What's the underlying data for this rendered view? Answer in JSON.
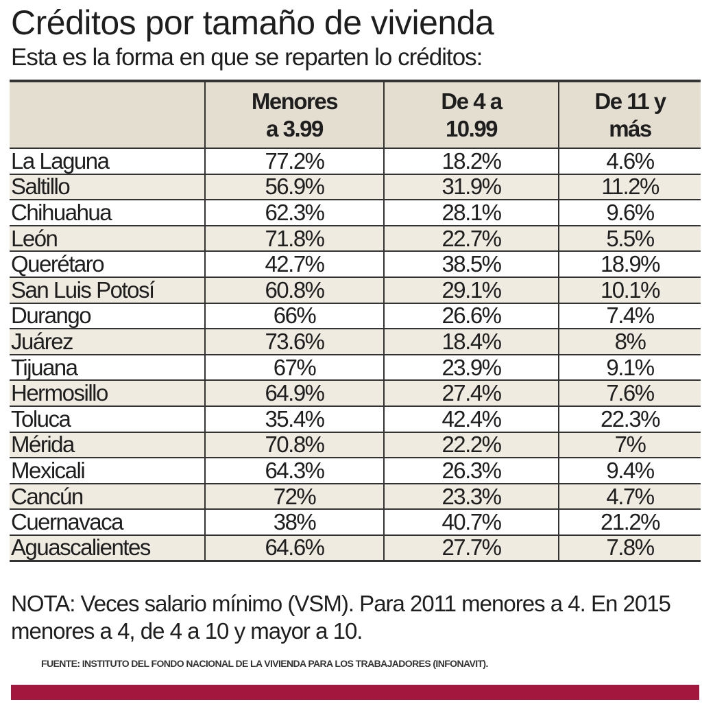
{
  "chart_data": {
    "type": "table",
    "title": "Créditos por tamaño de vivienda",
    "subtitle": "Esta es la forma en que se reparten lo créditos:",
    "columns": [
      {
        "line1": "",
        "line2": ""
      },
      {
        "line1": "Menores",
        "line2": "a 3.99"
      },
      {
        "line1": "De 4 a",
        "line2": "10.99"
      },
      {
        "line1": "De 11 y",
        "line2": "más"
      }
    ],
    "rows": [
      {
        "city": "La Laguna",
        "values": [
          "77.2%",
          "18.2%",
          "4.6%"
        ]
      },
      {
        "city": "Saltillo",
        "values": [
          "56.9%",
          "31.9%",
          "11.2%"
        ]
      },
      {
        "city": "Chihuahua",
        "values": [
          "62.3%",
          "28.1%",
          "9.6%"
        ]
      },
      {
        "city": "León",
        "values": [
          "71.8%",
          "22.7%",
          "5.5%"
        ]
      },
      {
        "city": "Querétaro",
        "values": [
          "42.7%",
          "38.5%",
          "18.9%"
        ]
      },
      {
        "city": "San Luis Potosí",
        "values": [
          "60.8%",
          "29.1%",
          "10.1%"
        ]
      },
      {
        "city": "Durango",
        "values": [
          "66%",
          "26.6%",
          "7.4%"
        ]
      },
      {
        "city": "Juárez",
        "values": [
          "73.6%",
          "18.4%",
          "8%"
        ]
      },
      {
        "city": "Tijuana",
        "values": [
          "67%",
          "23.9%",
          "9.1%"
        ]
      },
      {
        "city": "Hermosillo",
        "values": [
          "64.9%",
          "27.4%",
          "7.6%"
        ]
      },
      {
        "city": "Toluca",
        "values": [
          "35.4%",
          "42.4%",
          "22.3%"
        ]
      },
      {
        "city": "Mérida",
        "values": [
          "70.8%",
          "22.2%",
          "7%"
        ]
      },
      {
        "city": "Mexicali",
        "values": [
          "64.3%",
          "26.3%",
          "9.4%"
        ]
      },
      {
        "city": "Cancún",
        "values": [
          "72%",
          "23.3%",
          "4.7%"
        ]
      },
      {
        "city": "Cuernavaca",
        "values": [
          "38%",
          "40.7%",
          "21.2%"
        ]
      },
      {
        "city": "Aguascalientes",
        "values": [
          "64.6%",
          "27.7%",
          "7.8%"
        ]
      }
    ],
    "note": "NOTA: Veces salario mínimo (VSM). Para 2011 menores a 4. En 2015 menores a 4, de 4 a 10 y mayor a 10.",
    "source": "FUENTE: INSTITUTO DEL FONDO NACIONAL DE LA VIVIENDA PARA LOS TRABAJADORES (INFONAVIT)."
  },
  "colors": {
    "accent_bar": "#a3173e",
    "header_bg": "#e3ded0",
    "alt_row_bg": "#efebe1"
  }
}
